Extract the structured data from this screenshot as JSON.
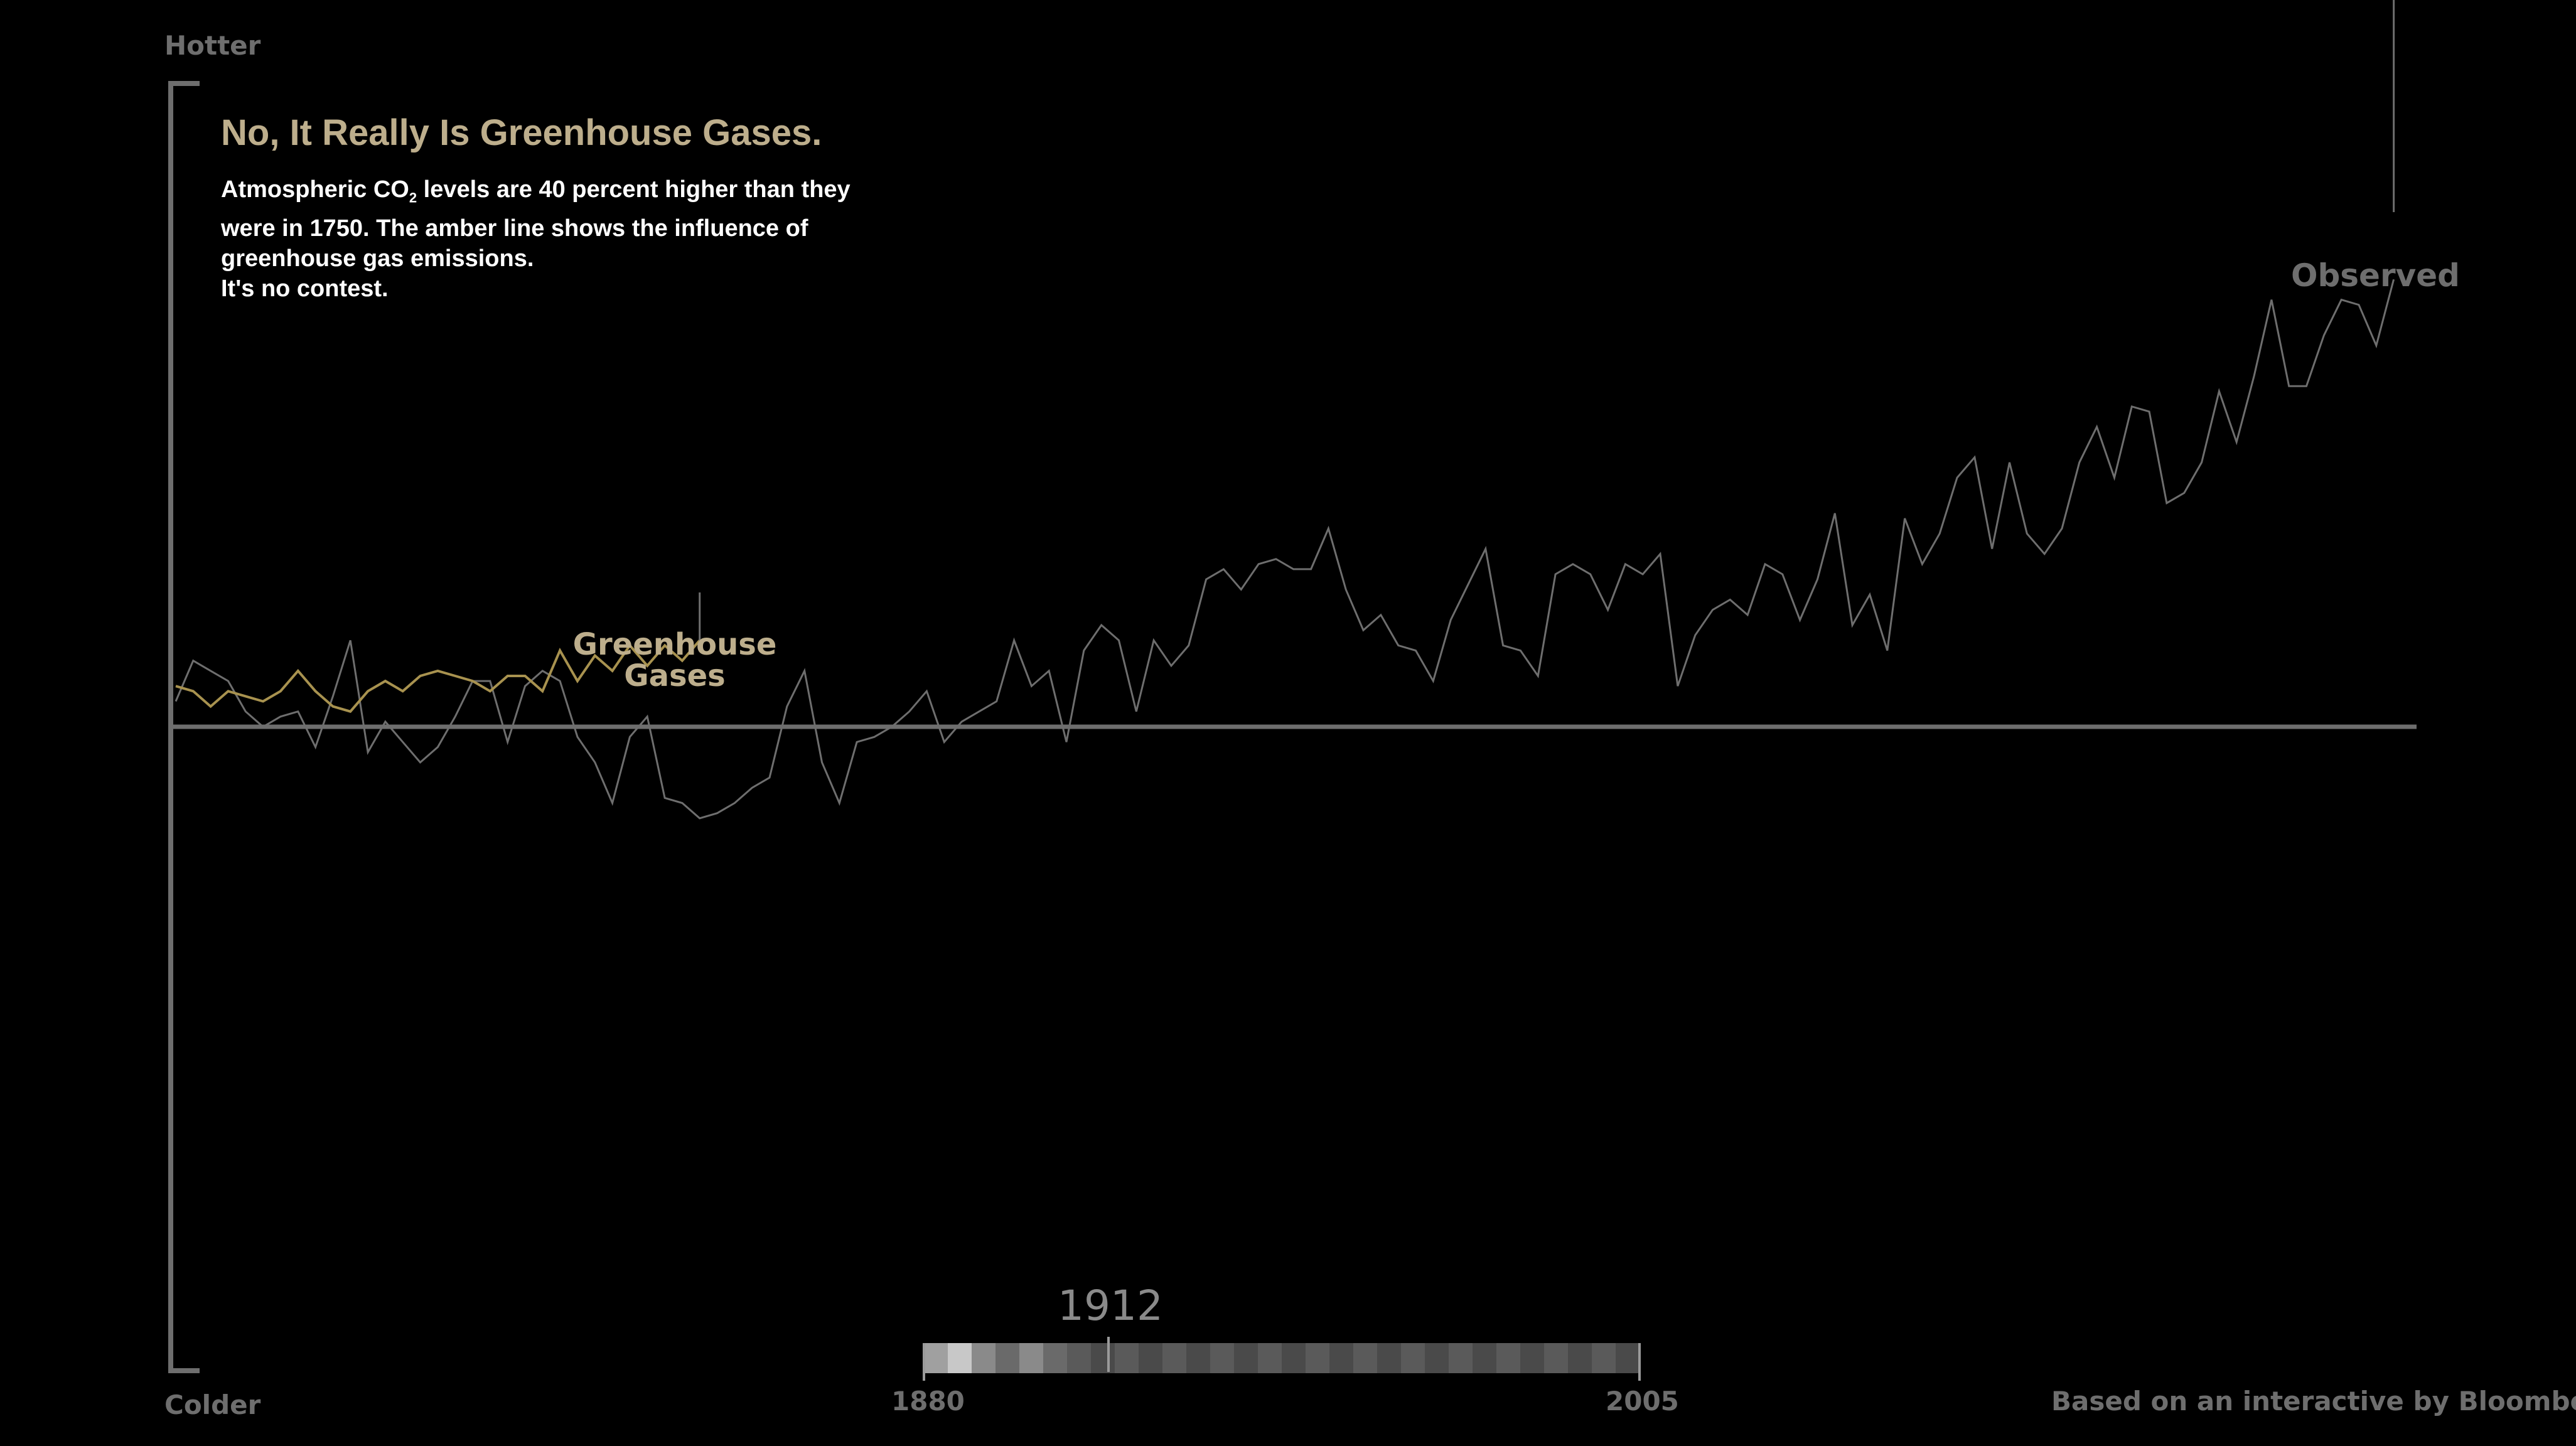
{
  "chart_data": {
    "type": "line",
    "title": "No, It Really Is Greenhouse Gases.",
    "subtitle": {
      "part1": "Atmospheric CO",
      "sub": "2",
      "part2": " levels are 40 percent higher than they were in 1750.  The amber line shows the influence of greenhouse gas emissions.",
      "part3": "It's no contest."
    },
    "y_top_label": "Hotter",
    "y_bottom_label": "Colder",
    "ylim": [
      -1.0,
      1.1
    ],
    "xlim": [
      1880,
      2005
    ],
    "grid": false,
    "series": [
      {
        "name": "Observed",
        "color": "#6e6e6e",
        "x_start": 1880,
        "values": [
          0.05,
          0.13,
          0.11,
          0.09,
          0.03,
          0.0,
          0.02,
          0.03,
          -0.04,
          0.06,
          0.17,
          -0.05,
          0.01,
          -0.03,
          -0.07,
          -0.04,
          0.02,
          0.09,
          0.09,
          -0.03,
          0.08,
          0.11,
          0.09,
          -0.02,
          -0.07,
          -0.15,
          -0.02,
          0.02,
          -0.14,
          -0.15,
          -0.18,
          -0.17,
          -0.15,
          -0.12,
          -0.1,
          0.04,
          0.11,
          -0.07,
          -0.15,
          -0.03,
          -0.02,
          0.0,
          0.03,
          0.07,
          -0.03,
          0.01,
          0.03,
          0.05,
          0.17,
          0.08,
          0.11,
          -0.03,
          0.15,
          0.2,
          0.17,
          0.03,
          0.17,
          0.12,
          0.16,
          0.29,
          0.31,
          0.27,
          0.32,
          0.33,
          0.31,
          0.31,
          0.39,
          0.27,
          0.19,
          0.22,
          0.16,
          0.15,
          0.09,
          0.21,
          0.28,
          0.35,
          0.16,
          0.15,
          0.1,
          0.3,
          0.32,
          0.3,
          0.23,
          0.32,
          0.3,
          0.34,
          0.08,
          0.18,
          0.23,
          0.25,
          0.22,
          0.32,
          0.3,
          0.21,
          0.29,
          0.42,
          0.2,
          0.26,
          0.15,
          0.41,
          0.32,
          0.38,
          0.49,
          0.53,
          0.35,
          0.52,
          0.38,
          0.34,
          0.39,
          0.52,
          0.59,
          0.49,
          0.63,
          0.62,
          0.44,
          0.46,
          0.52,
          0.66,
          0.56,
          0.69,
          0.84,
          0.67,
          0.67,
          0.77,
          0.84,
          0.83,
          0.75,
          0.88
        ]
      },
      {
        "name": "Greenhouse Gases",
        "color": "#a8924f",
        "x_start": 1880,
        "values": [
          0.08,
          0.07,
          0.04,
          0.07,
          0.06,
          0.05,
          0.07,
          0.11,
          0.07,
          0.04,
          0.03,
          0.07,
          0.09,
          0.07,
          0.1,
          0.11,
          0.1,
          0.09,
          0.07,
          0.1,
          0.1,
          0.07,
          0.15,
          0.09,
          0.14,
          0.11,
          0.16,
          0.12,
          0.16,
          0.13,
          0.17
        ]
      }
    ],
    "annotations": {
      "observed_label": "Observed",
      "ghg_label_line1": "Greenhouse",
      "ghg_label_line2": "Gases"
    },
    "timeline": {
      "current_year": "1912",
      "start_label": "1880",
      "end_label": "2005"
    },
    "credit": "Based on an interactive by Bloomberg"
  }
}
